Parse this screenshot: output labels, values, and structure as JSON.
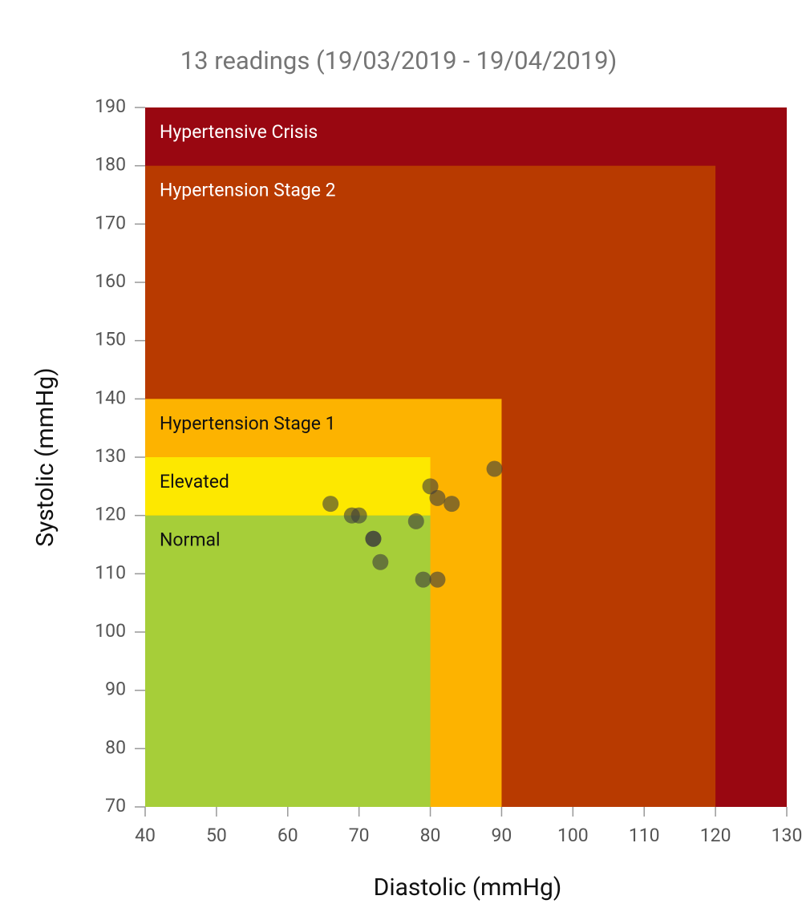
{
  "chart_data": {
    "type": "scatter",
    "title": "13 readings (19/03/2019 - 19/04/2019)",
    "xlabel": "Diastolic (mmHg)",
    "ylabel": "Systolic (mmHg)",
    "xlim": [
      40,
      130
    ],
    "ylim": [
      70,
      190
    ],
    "xticks": [
      40,
      50,
      60,
      70,
      80,
      90,
      100,
      110,
      120,
      130
    ],
    "yticks": [
      70,
      80,
      90,
      100,
      110,
      120,
      130,
      140,
      150,
      160,
      170,
      180,
      190
    ],
    "regions": [
      {
        "name": "Hypertensive Crisis",
        "color": "#990711",
        "text_color": "#ffffff",
        "x": [
          40,
          130
        ],
        "y": [
          70,
          190
        ]
      },
      {
        "name": "Hypertension Stage 2",
        "color": "#b83a00",
        "text_color": "#ffffff",
        "x": [
          40,
          120
        ],
        "y": [
          70,
          180
        ]
      },
      {
        "name": "Hypertension Stage 1",
        "color": "#fdb300",
        "text_color": "#111111",
        "x": [
          40,
          90
        ],
        "y": [
          70,
          140
        ]
      },
      {
        "name": "Elevated",
        "color": "#fde800",
        "text_color": "#111111",
        "x": [
          40,
          80
        ],
        "y": [
          120,
          130
        ]
      },
      {
        "name": "Normal",
        "color": "#a6ce39",
        "text_color": "#111111",
        "x": [
          40,
          80
        ],
        "y": [
          70,
          120
        ]
      }
    ],
    "series": [
      {
        "color": "#3c3c3c",
        "x": [
          66,
          69,
          70,
          72,
          72,
          73,
          78,
          79,
          80,
          81,
          81,
          83,
          89
        ],
        "values": [
          122,
          120,
          120,
          116,
          116,
          112,
          119,
          109,
          125,
          123,
          109,
          122,
          128
        ]
      }
    ]
  }
}
